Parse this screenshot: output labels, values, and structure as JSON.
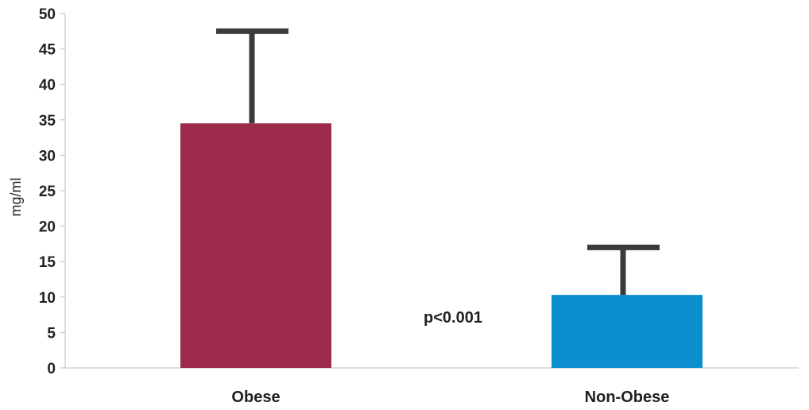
{
  "chart_data": {
    "type": "bar",
    "categories": [
      "Obese",
      "Non-Obese"
    ],
    "values": [
      34.5,
      10.3
    ],
    "error_upper": [
      47.5,
      17.0
    ],
    "colors": [
      "#9c2a4b",
      "#0d8fcf"
    ],
    "error_color": "#3a3a3c",
    "title": "",
    "xlabel": "",
    "ylabel": "mg/ml",
    "ylim": [
      0,
      50
    ],
    "yticks": [
      0,
      5,
      10,
      15,
      20,
      25,
      30,
      35,
      40,
      45,
      50
    ],
    "grid": false,
    "annotations": [
      {
        "text": "p<0.001"
      }
    ]
  }
}
